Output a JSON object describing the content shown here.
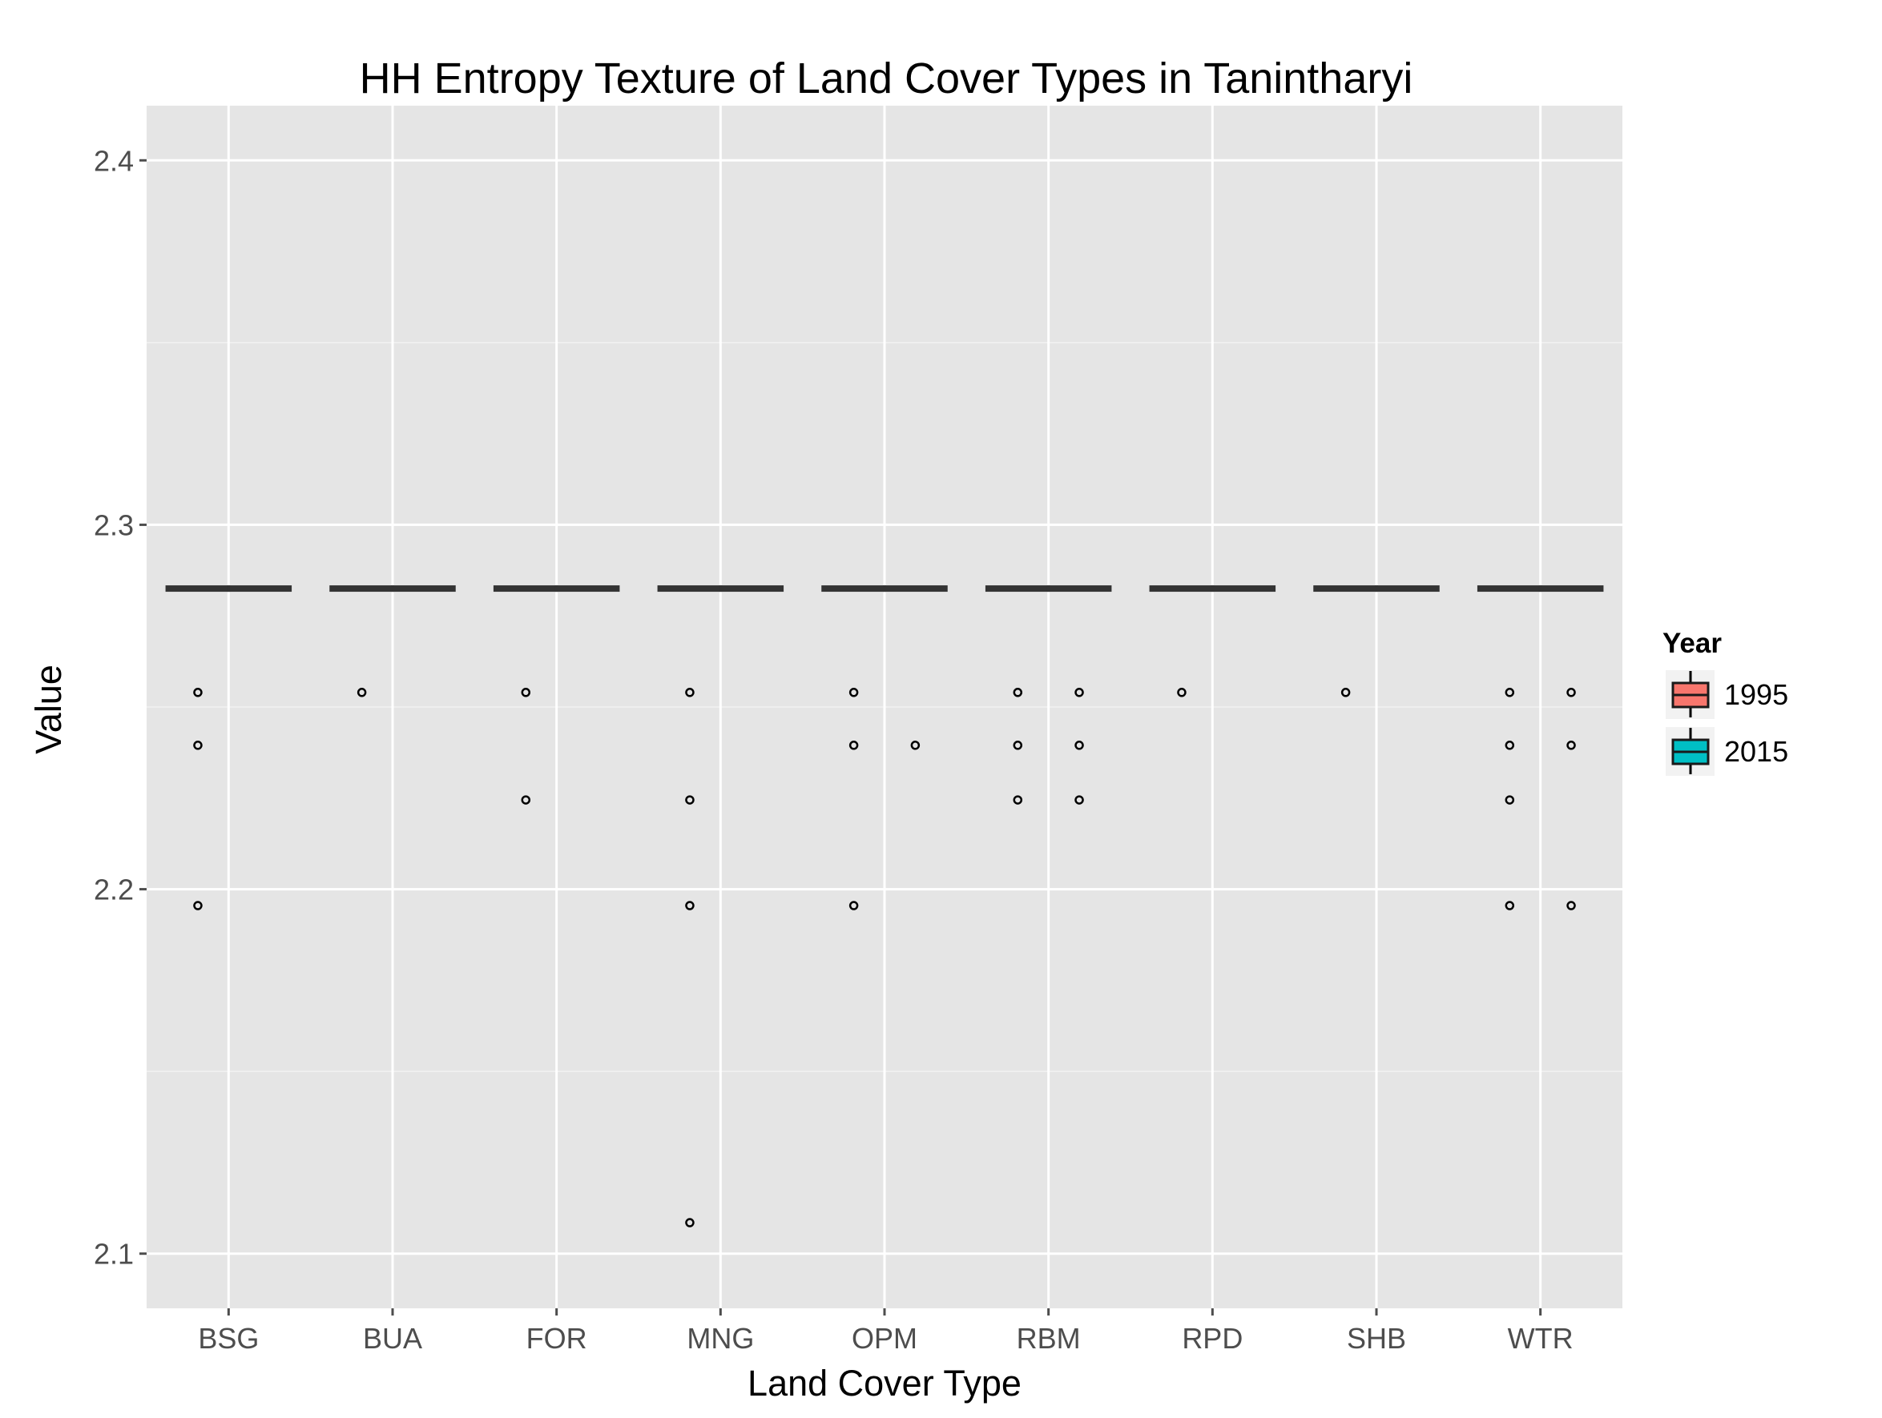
{
  "chart_data": {
    "type": "boxplot",
    "title": "HH Entropy Texture of Land Cover Types in Tanintharyi",
    "xlabel": "Land Cover Type",
    "ylabel": "Value",
    "ylim": [
      2.085,
      2.415
    ],
    "yticks": [
      2.1,
      2.2,
      2.3,
      2.4
    ],
    "ytick_labels": [
      "2.1",
      "2.2",
      "2.3",
      "2.4"
    ],
    "categories": [
      "BSG",
      "BUA",
      "FOR",
      "MNG",
      "OPM",
      "RBM",
      "RPD",
      "SHB",
      "WTR"
    ],
    "legend": {
      "title": "Year",
      "position": "right",
      "entries": [
        {
          "label": "1995",
          "color": "#F8766D"
        },
        {
          "label": "2015",
          "color": "#00BFC4"
        }
      ]
    },
    "series": [
      {
        "name": "1995",
        "color": "#F8766D",
        "boxes": [
          {
            "category": "BSG",
            "median": 2.2825,
            "outliers": [
              2.254,
              2.2395,
              2.1955
            ]
          },
          {
            "category": "BUA",
            "median": 2.2825,
            "outliers": [
              2.254
            ]
          },
          {
            "category": "FOR",
            "median": 2.2825,
            "outliers": [
              2.254,
              2.2245
            ]
          },
          {
            "category": "MNG",
            "median": 2.2825,
            "outliers": [
              2.254,
              2.2245,
              2.1955,
              2.1085
            ]
          },
          {
            "category": "OPM",
            "median": 2.2825,
            "outliers": [
              2.254,
              2.2395,
              2.1955
            ]
          },
          {
            "category": "RBM",
            "median": 2.2825,
            "outliers": [
              2.254,
              2.2395,
              2.2245
            ]
          },
          {
            "category": "RPD",
            "median": 2.2825,
            "outliers": [
              2.254
            ]
          },
          {
            "category": "SHB",
            "median": 2.2825,
            "outliers": [
              2.254
            ]
          },
          {
            "category": "WTR",
            "median": 2.2825,
            "outliers": [
              2.254,
              2.2395,
              2.2245,
              2.1955
            ]
          }
        ]
      },
      {
        "name": "2015",
        "color": "#00BFC4",
        "boxes": [
          {
            "category": "BSG",
            "median": 2.2825,
            "outliers": []
          },
          {
            "category": "BUA",
            "median": 2.2825,
            "outliers": []
          },
          {
            "category": "FOR",
            "median": 2.2825,
            "outliers": []
          },
          {
            "category": "MNG",
            "median": 2.2825,
            "outliers": []
          },
          {
            "category": "OPM",
            "median": 2.2825,
            "outliers": [
              2.2395
            ]
          },
          {
            "category": "RBM",
            "median": 2.2825,
            "outliers": [
              2.254,
              2.2395,
              2.2245
            ]
          },
          {
            "category": "RPD",
            "median": 2.2825,
            "outliers": []
          },
          {
            "category": "SHB",
            "median": 2.2825,
            "outliers": []
          },
          {
            "category": "WTR",
            "median": 2.2825,
            "outliers": [
              2.254,
              2.2395,
              2.1955
            ]
          }
        ]
      }
    ],
    "grid": true
  }
}
